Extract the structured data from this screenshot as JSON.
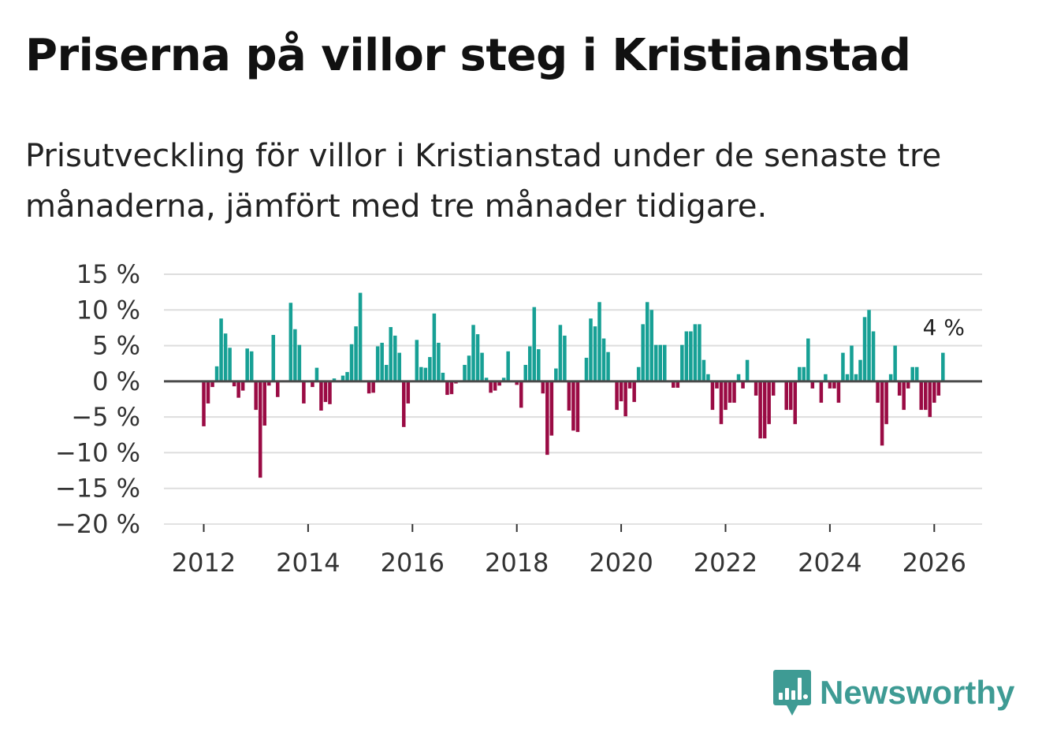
{
  "title": "Priserna på villor steg i Kristianstad",
  "subtitle": "Prisutveckling för villor i Kristianstad under de senaste tre månaderna, jämfört med tre månader tidigare.",
  "brand": {
    "name": "Newsworthy",
    "icon": "newsworthy-logo-icon"
  },
  "colors": {
    "positive": "#17a095",
    "negative": "#9a0b44",
    "zero_line": "#4a4a4a",
    "grid": "#dddddd",
    "brand": "#3e9b94"
  },
  "chart_data": {
    "type": "bar",
    "title": "Priserna på villor steg i Kristianstad",
    "xlabel": "",
    "ylabel": "",
    "ylim": [
      -20,
      15
    ],
    "yticks": [
      15,
      10,
      5,
      0,
      -5,
      -10,
      -15,
      -20
    ],
    "ytick_labels": [
      "15 %",
      "10 %",
      "5 %",
      "0 %",
      "−5 %",
      "−10 %",
      "−15 %",
      "−20 %"
    ],
    "xticks": [
      2012,
      2014,
      2016,
      2018,
      2020,
      2022,
      2024,
      2026
    ],
    "xtick_labels": [
      "2012",
      "2014",
      "2016",
      "2018",
      "2020",
      "2022",
      "2024",
      "2026"
    ],
    "start": {
      "year": 2012,
      "month": 1
    },
    "last_value_label": "4 %",
    "values": [
      -6.3,
      -3.1,
      -0.8,
      2.1,
      8.8,
      6.7,
      4.7,
      -0.7,
      -2.3,
      -1.3,
      4.6,
      4.2,
      -4.0,
      -13.5,
      -6.2,
      -0.6,
      6.5,
      -2.2,
      0,
      0,
      11.0,
      7.3,
      5.1,
      -3.1,
      0,
      -0.8,
      1.9,
      -4.1,
      -2.9,
      -3.2,
      0.4,
      0,
      0.8,
      1.3,
      5.2,
      7.7,
      12.4,
      0,
      -1.7,
      -1.6,
      4.9,
      5.4,
      2.3,
      7.6,
      6.4,
      4.0,
      -6.4,
      -3.1,
      0,
      5.8,
      2.0,
      1.9,
      3.4,
      9.5,
      5.4,
      1.2,
      -1.9,
      -1.8,
      -0.3,
      0,
      2.3,
      3.6,
      7.9,
      6.6,
      4.0,
      0.5,
      -1.6,
      -1.3,
      -0.6,
      0.5,
      4.2,
      0,
      -0.5,
      -3.7,
      2.3,
      4.9,
      10.4,
      4.5,
      -1.7,
      -10.3,
      -7.6,
      1.8,
      7.9,
      6.4,
      -4.1,
      -6.9,
      -7.1,
      0,
      3.3,
      8.8,
      7.7,
      11.1,
      6.0,
      4.1,
      0,
      -4.0,
      -2.8,
      -4.9,
      -1.0,
      -2.9,
      2.0,
      8.0,
      11.1,
      10.0,
      5.1,
      5.1,
      5.1,
      0,
      -0.9,
      -0.9,
      5.1,
      7.0,
      7.0,
      8.0,
      8.0,
      3.0,
      1.0,
      -4.0,
      -1.0,
      -6.0,
      -4.0,
      -3.0,
      -3.0,
      1.0,
      -1.0,
      3.0,
      0,
      -2.0,
      -8.0,
      -8.0,
      -6.0,
      -2.0,
      0,
      0,
      -4.0,
      -4.0,
      -6.0,
      2.0,
      2.0,
      6.0,
      -1.0,
      0,
      -3.0,
      1.0,
      -1.0,
      -1.0,
      -3.0,
      4.0,
      1.0,
      5.0,
      1.0,
      3.0,
      9.0,
      10.0,
      7.0,
      -3.0,
      -9.0,
      -6.0,
      1.0,
      5.0,
      -2.0,
      -4.0,
      -1.0,
      2.0,
      2.0,
      -4.0,
      -4.0,
      -5.0,
      -3.0,
      -2.0,
      4.0
    ]
  }
}
